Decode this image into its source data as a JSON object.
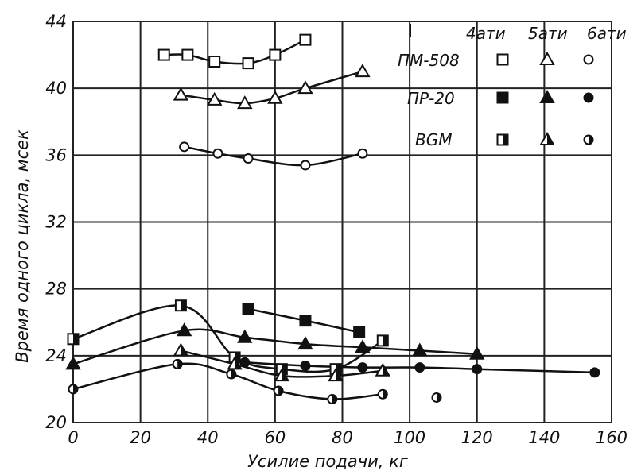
{
  "chart_data": {
    "type": "line",
    "xlabel": "Усилие подачи, кг",
    "ylabel": "Время одного цикла, мсек",
    "xlim": [
      0,
      160
    ],
    "ylim": [
      20,
      44
    ],
    "x_ticks": [
      0,
      20,
      40,
      60,
      80,
      100,
      120,
      140,
      160
    ],
    "y_ticks": [
      20,
      24,
      28,
      32,
      36,
      40,
      44
    ],
    "grid": true,
    "legend": {
      "placement": "top-right",
      "columns": [
        "4ати",
        "5ати",
        "6ати"
      ],
      "rows": [
        "ПМ-508",
        "ПР-20",
        "BGM"
      ]
    },
    "series": [
      {
        "name": "ПМ-508",
        "pressure": "4ати",
        "marker": "square",
        "fill": "open",
        "x": [
          27,
          34,
          42,
          52,
          60,
          69
        ],
        "y": [
          42.0,
          42.0,
          41.6,
          41.5,
          42.0,
          42.9
        ]
      },
      {
        "name": "ПМ-508",
        "pressure": "5ати",
        "marker": "triangle",
        "fill": "open",
        "x": [
          32,
          42,
          51,
          60,
          69,
          86
        ],
        "y": [
          39.6,
          39.3,
          39.1,
          39.4,
          40.0,
          41.0
        ]
      },
      {
        "name": "ПМ-508",
        "pressure": "6ати",
        "marker": "circle",
        "fill": "open",
        "x": [
          33,
          43,
          52,
          69,
          86
        ],
        "y": [
          36.5,
          36.1,
          35.8,
          35.4,
          36.1
        ]
      },
      {
        "name": "ПР-20",
        "pressure": "4ати",
        "marker": "square",
        "fill": "solid",
        "x": [
          52,
          69,
          85
        ],
        "y": [
          26.8,
          26.1,
          25.4
        ]
      },
      {
        "name": "ПР-20",
        "pressure": "5ати",
        "marker": "triangle",
        "fill": "solid",
        "x": [
          0,
          33,
          51,
          69,
          86,
          103,
          120
        ],
        "y": [
          23.5,
          25.5,
          25.1,
          24.7,
          24.5,
          24.3,
          24.1
        ]
      },
      {
        "name": "ПР-20",
        "pressure": "6ати",
        "marker": "circle",
        "fill": "solid",
        "x": [
          51,
          69,
          86,
          103,
          120,
          155
        ],
        "y": [
          23.6,
          23.4,
          23.3,
          23.3,
          23.2,
          23.0
        ]
      },
      {
        "name": "BGM",
        "pressure": "4ати",
        "marker": "square",
        "fill": "half",
        "x": [
          0,
          32,
          48,
          62,
          78,
          92
        ],
        "y": [
          25.0,
          27.0,
          23.9,
          23.2,
          23.2,
          24.9
        ]
      },
      {
        "name": "BGM",
        "pressure": "5ати",
        "marker": "triangle",
        "fill": "half",
        "x": [
          32,
          48,
          62,
          78,
          92
        ],
        "y": [
          24.3,
          23.5,
          22.8,
          22.8,
          23.1
        ]
      },
      {
        "name": "BGM",
        "pressure": "6ати",
        "marker": "circle",
        "fill": "half",
        "x": [
          0,
          31,
          47,
          61,
          77,
          92,
          108
        ],
        "y": [
          22.0,
          23.5,
          22.9,
          21.9,
          21.4,
          21.7,
          21.5
        ]
      }
    ]
  }
}
